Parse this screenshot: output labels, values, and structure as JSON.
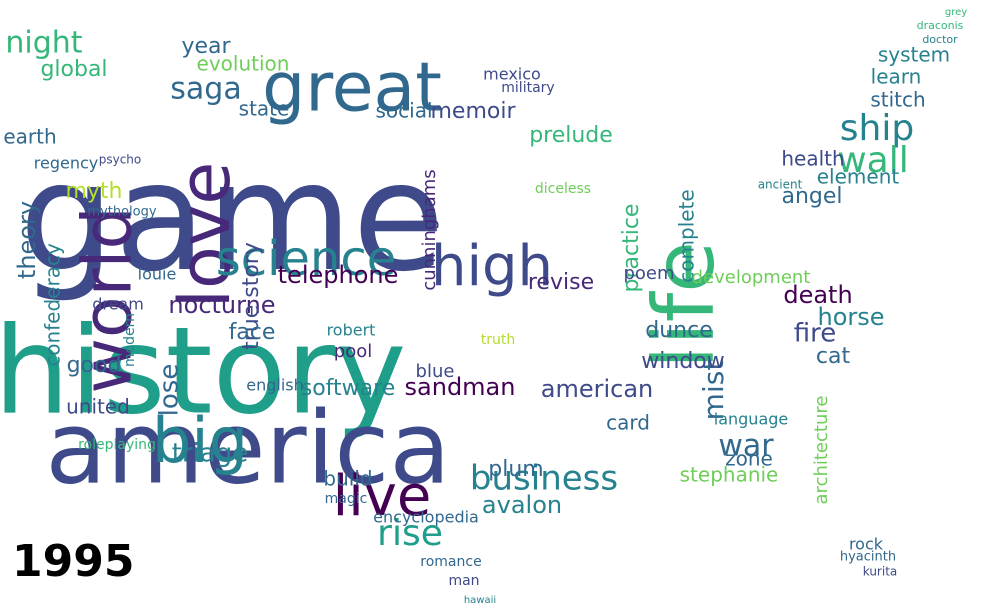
{
  "year_label": "1995",
  "palette": [
    "#440154",
    "#482878",
    "#3e4a89",
    "#31688e",
    "#26828e",
    "#1f9e89",
    "#35b779",
    "#6ece58",
    "#b5de2b",
    "#fde725"
  ],
  "words": [
    {
      "text": "game",
      "color": "#3e4a89"
    },
    {
      "text": "history",
      "color": "#1f9e89"
    },
    {
      "text": "america",
      "color": "#3e4a89"
    },
    {
      "text": "great",
      "color": "#31688e"
    },
    {
      "text": "love",
      "color": "#482878"
    },
    {
      "text": "world",
      "color": "#482878"
    },
    {
      "text": "life",
      "color": "#35b779"
    },
    {
      "text": "high",
      "color": "#3e4a89"
    },
    {
      "text": "science",
      "color": "#26828e"
    },
    {
      "text": "big",
      "color": "#26828e"
    },
    {
      "text": "live",
      "color": "#440154"
    },
    {
      "text": "business",
      "color": "#26828e"
    },
    {
      "text": "rise",
      "color": "#1f9e89"
    },
    {
      "text": "mist",
      "color": "#31688e"
    },
    {
      "text": "ship",
      "color": "#26828e"
    },
    {
      "text": "wall",
      "color": "#35b779"
    },
    {
      "text": "night",
      "color": "#35b779"
    },
    {
      "text": "saga",
      "color": "#31688e"
    },
    {
      "text": "war",
      "color": "#31688e"
    },
    {
      "text": "telephone",
      "color": "#440154"
    },
    {
      "text": "evolution",
      "color": "#6ece58"
    },
    {
      "text": "memoir",
      "color": "#3e4a89"
    },
    {
      "text": "social",
      "color": "#31688e"
    },
    {
      "text": "prelude",
      "color": "#35b779"
    },
    {
      "text": "state",
      "color": "#31688e"
    },
    {
      "text": "earth",
      "color": "#31688e"
    },
    {
      "text": "myth",
      "color": "#b5de2b"
    },
    {
      "text": "theory",
      "color": "#31688e"
    },
    {
      "text": "confederacy",
      "color": "#26828e"
    },
    {
      "text": "lose",
      "color": "#31688e"
    },
    {
      "text": "nocturne",
      "color": "#482878"
    },
    {
      "text": "true story",
      "color": "#3e4a89"
    },
    {
      "text": "face",
      "color": "#31688e"
    },
    {
      "text": "triage",
      "color": "#26828e"
    },
    {
      "text": "united",
      "color": "#3e4a89"
    },
    {
      "text": "good",
      "color": "#31688e"
    },
    {
      "text": "software",
      "color": "#26828e"
    },
    {
      "text": "american",
      "color": "#3e4a89"
    },
    {
      "text": "sandman",
      "color": "#440154"
    },
    {
      "text": "dunce",
      "color": "#31688e"
    },
    {
      "text": "window",
      "color": "#3e4a89"
    },
    {
      "text": "fire",
      "color": "#3e4a89"
    },
    {
      "text": "horse",
      "color": "#26828e"
    },
    {
      "text": "cat",
      "color": "#31688e"
    },
    {
      "text": "death",
      "color": "#440154"
    },
    {
      "text": "angel",
      "color": "#31688e"
    },
    {
      "text": "element",
      "color": "#26828e"
    },
    {
      "text": "health",
      "color": "#3e4a89"
    },
    {
      "text": "stitch",
      "color": "#31688e"
    },
    {
      "text": "learn",
      "color": "#26828e"
    },
    {
      "text": "system",
      "color": "#26828e"
    },
    {
      "text": "zone",
      "color": "#31688e"
    },
    {
      "text": "stephanie",
      "color": "#6ece58"
    },
    {
      "text": "avalon",
      "color": "#26828e"
    },
    {
      "text": "plum",
      "color": "#31688e"
    },
    {
      "text": "card",
      "color": "#31688e"
    },
    {
      "text": "build",
      "color": "#31688e"
    },
    {
      "text": "encyclopedia",
      "color": "#31688e"
    },
    {
      "text": "practice",
      "color": "#35b779"
    },
    {
      "text": "cunninghams",
      "color": "#482878"
    },
    {
      "text": "revise",
      "color": "#482878"
    },
    {
      "text": "complete",
      "color": "#26828e"
    },
    {
      "text": "development",
      "color": "#6ece58"
    },
    {
      "text": "poem",
      "color": "#3e4a89"
    },
    {
      "text": "architecture",
      "color": "#6ece58"
    },
    {
      "text": "global",
      "color": "#35b779"
    },
    {
      "text": "year",
      "color": "#31688e"
    },
    {
      "text": "english",
      "color": "#31688e"
    },
    {
      "text": "blue",
      "color": "#3e4a89"
    },
    {
      "text": "pool",
      "color": "#482878"
    },
    {
      "text": "robert",
      "color": "#26828e"
    },
    {
      "text": "louie",
      "color": "#31688e"
    },
    {
      "text": "dream",
      "color": "#3e4a89"
    },
    {
      "text": "romance",
      "color": "#31688e"
    },
    {
      "text": "man",
      "color": "#3e4a89"
    },
    {
      "text": "mexico",
      "color": "#3e4a89"
    },
    {
      "text": "military",
      "color": "#3e4a89"
    },
    {
      "text": "rock",
      "color": "#31688e"
    },
    {
      "text": "language",
      "color": "#26828e"
    },
    {
      "text": "regency",
      "color": "#31688e"
    },
    {
      "text": "mythology",
      "color": "#31688e"
    },
    {
      "text": "roleplaying",
      "color": "#35b779"
    },
    {
      "text": "modern",
      "color": "#26828e"
    },
    {
      "text": "magic",
      "color": "#31688e"
    },
    {
      "text": "truth",
      "color": "#b5de2b"
    },
    {
      "text": "diceless",
      "color": "#6ece58"
    },
    {
      "text": "hyacinth",
      "color": "#31688e"
    },
    {
      "text": "kurita",
      "color": "#3e4a89"
    },
    {
      "text": "psycho",
      "color": "#3e4a89"
    },
    {
      "text": "ancient",
      "color": "#26828e"
    },
    {
      "text": "grey",
      "color": "#35b779"
    },
    {
      "text": "draconis",
      "color": "#35b779"
    },
    {
      "text": "doctor",
      "color": "#26828e"
    },
    {
      "text": "hawaii",
      "color": "#26828e"
    }
  ]
}
